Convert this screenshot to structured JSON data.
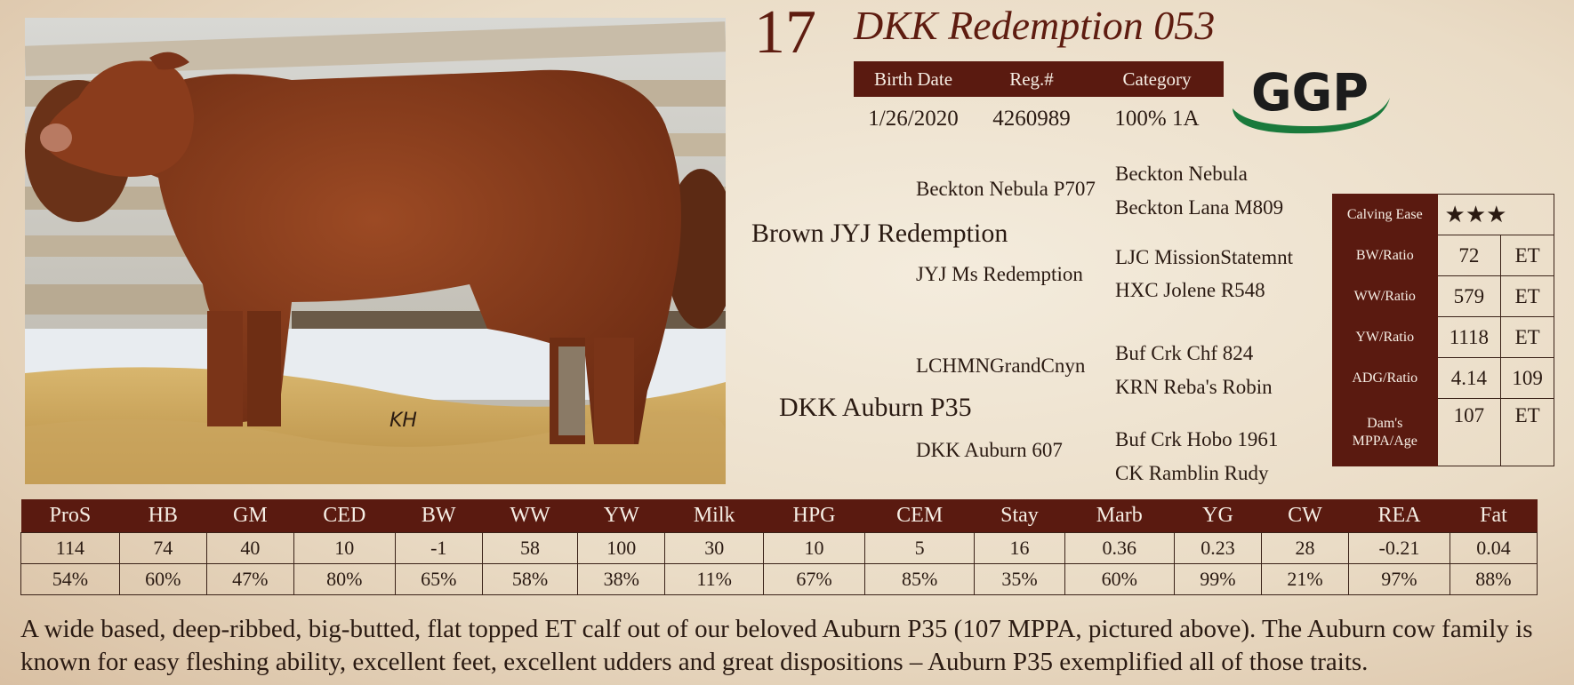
{
  "lot_number": "17",
  "bull_name": "DKK Redemption 053",
  "info": {
    "headers": [
      "Birth Date",
      "Reg.#",
      "Category"
    ],
    "values": [
      "1/26/2020",
      "4260989",
      "100% 1A"
    ]
  },
  "logo": {
    "text": "GGP",
    "colors": {
      "text": "#1c1c1c",
      "swoosh": "#1a7a3c"
    }
  },
  "photo": {
    "watermark": "KH"
  },
  "pedigree": {
    "sire": "Brown JYJ Redemption",
    "sire_sire": "Beckton Nebula P707",
    "sire_sire_sire": "Beckton Nebula",
    "sire_sire_dam": "Beckton Lana M809",
    "sire_dam": "JYJ Ms Redemption",
    "sire_dam_sire": "LJC MissionStatemnt",
    "sire_dam_dam": "HXC Jolene R548",
    "dam": "DKK Auburn P35",
    "dam_sire": "LCHMNGrandCnyn",
    "dam_sire_sire": "Buf Crk Chf 824",
    "dam_sire_dam": "KRN Reba's Robin",
    "dam_dam": "DKK Auburn 607",
    "dam_dam_sire": "Buf Crk Hobo 1961",
    "dam_dam_dam": "CK Ramblin Rudy"
  },
  "performance": {
    "calving_ease": {
      "label": "Calving Ease",
      "stars": "★★★",
      "rating": 3
    },
    "rows": [
      {
        "label": "BW/Ratio",
        "v1": "72",
        "v2": "ET"
      },
      {
        "label": "WW/Ratio",
        "v1": "579",
        "v2": "ET"
      },
      {
        "label": "YW/Ratio",
        "v1": "1118",
        "v2": "ET"
      },
      {
        "label": "ADG/Ratio",
        "v1": "4.14",
        "v2": "109"
      }
    ],
    "mppa": {
      "label_line1": "Dam's",
      "label_line2": "MPPA/Age",
      "v1": "107",
      "v2": "ET"
    }
  },
  "epd_table": {
    "headers": [
      "ProS",
      "HB",
      "GM",
      "CED",
      "BW",
      "WW",
      "YW",
      "Milk",
      "HPG",
      "CEM",
      "Stay",
      "Marb",
      "YG",
      "CW",
      "REA",
      "Fat"
    ],
    "epd": [
      "114",
      "74",
      "40",
      "10",
      "-1",
      "58",
      "100",
      "30",
      "10",
      "5",
      "16",
      "0.36",
      "0.23",
      "28",
      "-0.21",
      "0.04"
    ],
    "accuracy": [
      "54%",
      "60%",
      "47%",
      "80%",
      "65%",
      "58%",
      "38%",
      "11%",
      "67%",
      "85%",
      "35%",
      "60%",
      "99%",
      "21%",
      "97%",
      "88%"
    ]
  },
  "description": "A wide based, deep-ribbed, big-butted, flat topped ET calf out of our beloved Auburn P35 (107 MPPA, pictured above). The Auburn cow family is known for easy fleshing ability, excellent feet, excellent udders and great dispositions – Auburn P35 exemplified all of those traits.",
  "colors": {
    "accent": "#5a1a10",
    "title": "#5e1c10",
    "background": "#f0e6d4"
  }
}
